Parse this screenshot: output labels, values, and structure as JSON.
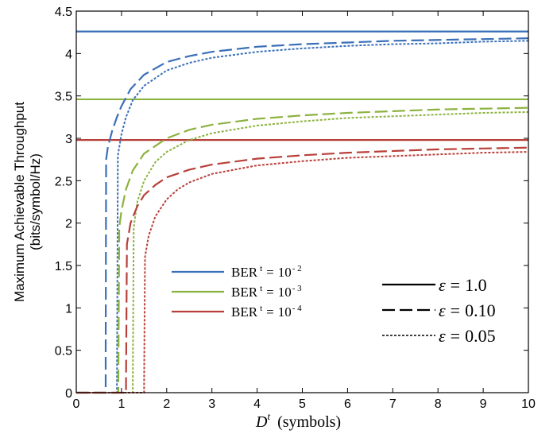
{
  "chart_data": {
    "type": "line",
    "xlabel_main": "D",
    "xlabel_sup": "t",
    "xlabel_rest": "(symbols)",
    "ylabel_line1": "Maximum Achievable Throughput",
    "ylabel_line2": "(bits/symbol/Hz)",
    "xlim": [
      0,
      10
    ],
    "ylim": [
      0,
      4.5
    ],
    "xticks": [
      0,
      1,
      2,
      3,
      4,
      5,
      6,
      7,
      8,
      9,
      10
    ],
    "yticks": [
      0,
      0.5,
      1,
      1.5,
      2,
      2.5,
      3,
      3.5,
      4,
      4.5
    ],
    "ytick_labels": [
      "0",
      "0.5",
      "1",
      "1.5",
      "2",
      "2.5",
      "3",
      "3.5",
      "4",
      "4.5"
    ],
    "grid": false,
    "colors": {
      "ber2": "#3a6fb7",
      "ber3": "#8cb23f",
      "ber4": "#b8403a"
    },
    "legend_colors": [
      {
        "label_main": "BER",
        "label_sup": "t",
        "label_eq": "=",
        "label_base": "10",
        "label_exp": "- 2",
        "color": "#3a6fb7"
      },
      {
        "label_main": "BER",
        "label_sup": "t",
        "label_eq": "=",
        "label_base": "10",
        "label_exp": "- 3",
        "color": "#8cb23f"
      },
      {
        "label_main": "BER",
        "label_sup": "t",
        "label_eq": "=",
        "label_base": "10",
        "label_exp": "- 4",
        "color": "#b8403a"
      }
    ],
    "legend_styles": [
      {
        "symbol": "ε",
        "eq": "=",
        "value": "1.0",
        "style": "solid"
      },
      {
        "symbol": "ε",
        "eq": "=",
        "value": "0.10",
        "style": "dashed"
      },
      {
        "symbol": "ε",
        "eq": "=",
        "value": "0.05",
        "style": "dotted"
      }
    ],
    "series": [
      {
        "ber": "ber2",
        "eps": "1.0",
        "style": "solid",
        "y_const": 4.26
      },
      {
        "ber": "ber3",
        "eps": "1.0",
        "style": "solid",
        "y_const": 3.46
      },
      {
        "ber": "ber4",
        "eps": "1.0",
        "style": "solid",
        "y_const": 2.98
      },
      {
        "ber": "ber2",
        "eps": "0.10",
        "style": "dashed",
        "x": [
          0,
          0.65,
          0.65,
          0.66,
          0.7,
          0.8,
          0.9,
          1.0,
          1.2,
          1.5,
          2.0,
          2.5,
          3,
          4,
          5,
          6,
          7,
          8,
          9,
          10
        ],
        "y": [
          0,
          0,
          0.45,
          2.75,
          2.9,
          3.1,
          3.25,
          3.38,
          3.58,
          3.75,
          3.9,
          3.97,
          4.02,
          4.08,
          4.11,
          4.13,
          4.15,
          4.16,
          4.17,
          4.18
        ]
      },
      {
        "ber": "ber2",
        "eps": "0.05",
        "style": "dotted",
        "x": [
          0,
          0.9,
          0.9,
          0.92,
          1.0,
          1.1,
          1.25,
          1.5,
          2.0,
          2.5,
          3,
          4,
          5,
          6,
          7,
          8,
          9,
          10
        ],
        "y": [
          0,
          0,
          0.1,
          2.8,
          3.05,
          3.25,
          3.45,
          3.62,
          3.8,
          3.89,
          3.95,
          4.02,
          4.06,
          4.09,
          4.11,
          4.12,
          4.14,
          4.15
        ]
      },
      {
        "ber": "ber3",
        "eps": "0.10",
        "style": "dashed",
        "x": [
          0,
          0.93,
          0.93,
          0.95,
          1.0,
          1.1,
          1.25,
          1.5,
          2.0,
          2.5,
          3,
          4,
          5,
          6,
          7,
          8,
          9,
          10
        ],
        "y": [
          0,
          0,
          0.1,
          1.95,
          2.15,
          2.4,
          2.62,
          2.82,
          3.0,
          3.1,
          3.16,
          3.23,
          3.27,
          3.3,
          3.32,
          3.34,
          3.35,
          3.36
        ]
      },
      {
        "ber": "ber3",
        "eps": "0.05",
        "style": "dotted",
        "x": [
          0,
          1.25,
          1.25,
          1.27,
          1.35,
          1.5,
          1.75,
          2.0,
          2.5,
          3,
          4,
          5,
          6,
          7,
          8,
          9,
          10
        ],
        "y": [
          0,
          0,
          0.1,
          1.95,
          2.25,
          2.5,
          2.72,
          2.84,
          2.98,
          3.06,
          3.15,
          3.2,
          3.24,
          3.26,
          3.28,
          3.3,
          3.31
        ]
      },
      {
        "ber": "ber4",
        "eps": "0.10",
        "style": "dashed",
        "x": [
          0,
          1.1,
          1.1,
          1.12,
          1.2,
          1.35,
          1.5,
          1.75,
          2.0,
          2.5,
          3,
          4,
          5,
          6,
          7,
          8,
          9,
          10
        ],
        "y": [
          0,
          0,
          0.1,
          1.75,
          2.0,
          2.2,
          2.33,
          2.45,
          2.54,
          2.63,
          2.69,
          2.76,
          2.8,
          2.83,
          2.85,
          2.87,
          2.88,
          2.89
        ]
      },
      {
        "ber": "ber4",
        "eps": "0.05",
        "style": "dotted",
        "x": [
          0,
          1.5,
          1.5,
          1.52,
          1.6,
          1.75,
          2.0,
          2.25,
          2.5,
          3,
          4,
          5,
          6,
          7,
          8,
          9,
          10
        ],
        "y": [
          0,
          0,
          0.1,
          1.6,
          1.85,
          2.08,
          2.28,
          2.4,
          2.48,
          2.58,
          2.68,
          2.73,
          2.77,
          2.79,
          2.81,
          2.83,
          2.84
        ]
      }
    ]
  }
}
